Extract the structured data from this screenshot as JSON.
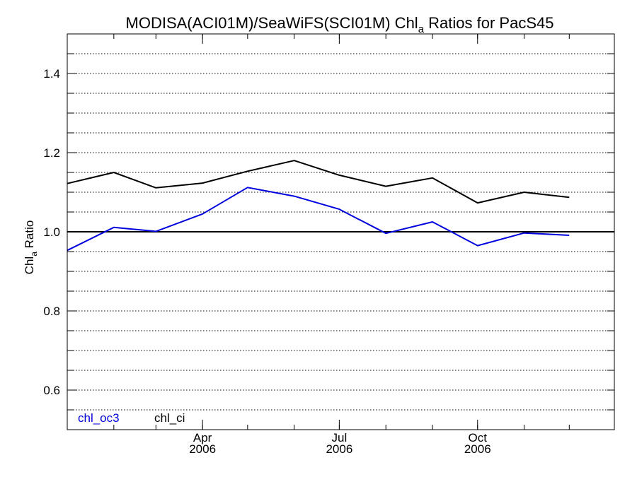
{
  "chart_data": {
    "type": "line",
    "title": "MODISA(ACI01M)/SeaWiFS(SCI01M)  Chl",
    "title_sub": "a",
    "title_suffix": " Ratios for PacS45",
    "ylabel": "Chl",
    "ylabel_sub": "a",
    "ylabel_suffix": " Ratio",
    "ylim": [
      0.5,
      1.5
    ],
    "xlim": [
      "2006-01-01",
      "2006-12-31"
    ],
    "grid": true,
    "reference_line": 1.0,
    "y_ticks": [
      {
        "value": 0.6,
        "label": "0.6"
      },
      {
        "value": 0.8,
        "label": "0.8"
      },
      {
        "value": 1.0,
        "label": "1.0"
      },
      {
        "value": 1.2,
        "label": "1.2"
      },
      {
        "value": 1.4,
        "label": "1.4"
      }
    ],
    "x_ticks": [
      {
        "date": "2006-04-01",
        "label": "Apr",
        "year": "2006"
      },
      {
        "date": "2006-07-01",
        "label": "Jul",
        "year": "2006"
      },
      {
        "date": "2006-10-01",
        "label": "Oct",
        "year": "2006"
      }
    ],
    "x": [
      "2006-01-01",
      "2006-02-01",
      "2006-03-01",
      "2006-04-01",
      "2006-05-01",
      "2006-06-01",
      "2006-07-01",
      "2006-08-01",
      "2006-09-01",
      "2006-10-01",
      "2006-11-01",
      "2006-12-01",
      "2006-12-31"
    ],
    "series": [
      {
        "name": "chl_oc3",
        "color": "#0000dd",
        "values": [
          0.953,
          1.011,
          1.001,
          1.045,
          1.112,
          1.09,
          1.057,
          0.996,
          1.025,
          0.965,
          0.997,
          0.991,
          null
        ]
      },
      {
        "name": "chl_ci",
        "color": "#000000",
        "values": [
          1.122,
          1.15,
          1.111,
          1.123,
          1.153,
          1.18,
          1.143,
          1.115,
          1.136,
          1.073,
          1.1,
          1.087,
          null
        ]
      }
    ],
    "legend_position": "bottom-left"
  }
}
